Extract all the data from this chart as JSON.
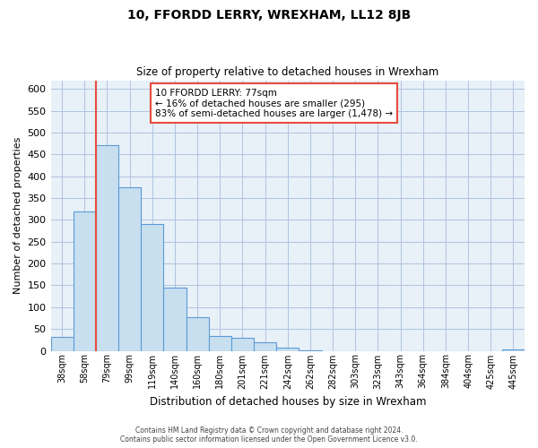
{
  "title": "10, FFORDD LERRY, WREXHAM, LL12 8JB",
  "subtitle": "Size of property relative to detached houses in Wrexham",
  "xlabel": "Distribution of detached houses by size in Wrexham",
  "ylabel": "Number of detached properties",
  "bar_labels": [
    "38sqm",
    "58sqm",
    "79sqm",
    "99sqm",
    "119sqm",
    "140sqm",
    "160sqm",
    "180sqm",
    "201sqm",
    "221sqm",
    "242sqm",
    "262sqm",
    "282sqm",
    "303sqm",
    "323sqm",
    "343sqm",
    "364sqm",
    "384sqm",
    "404sqm",
    "425sqm",
    "445sqm"
  ],
  "bar_values": [
    32,
    320,
    472,
    375,
    290,
    145,
    77,
    34,
    30,
    19,
    8,
    1,
    0,
    0,
    0,
    0,
    0,
    0,
    0,
    0,
    4
  ],
  "bar_color": "#c8dff0",
  "bar_edge_color": "#5b9bd5",
  "highlight_color": "#e74c3c",
  "red_line_x": 1.5,
  "ylim": [
    0,
    620
  ],
  "yticks": [
    0,
    50,
    100,
    150,
    200,
    250,
    300,
    350,
    400,
    450,
    500,
    550,
    600
  ],
  "annotation_title": "10 FFORDD LERRY: 77sqm",
  "annotation_line1": "← 16% of detached houses are smaller (295)",
  "annotation_line2": "83% of semi-detached houses are larger (1,478) →",
  "footer_line1": "Contains HM Land Registry data © Crown copyright and database right 2024.",
  "footer_line2": "Contains public sector information licensed under the Open Government Licence v3.0.",
  "bg_color": "#ffffff",
  "plot_bg_color": "#e8f0f8",
  "grid_color": "#b0c4de",
  "figsize": [
    6.0,
    5.0
  ],
  "dpi": 100
}
